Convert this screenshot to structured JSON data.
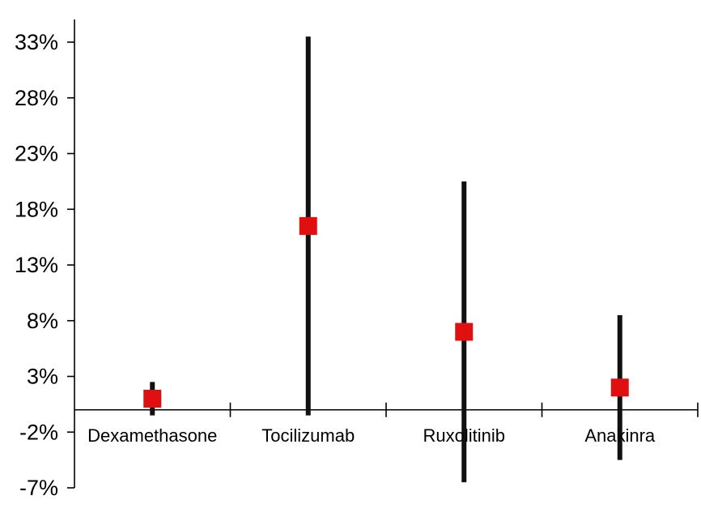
{
  "chart_data": {
    "type": "scatter",
    "subtype": "point-with-range",
    "title": "",
    "xlabel": "",
    "ylabel": "",
    "categories": [
      "Dexamethasone",
      "Tocilizumab",
      "Ruxolitinib",
      "Anakinra"
    ],
    "series": [
      {
        "points": [
          1.0,
          16.5,
          7.0,
          2.0
        ],
        "lower": [
          -0.5,
          -0.5,
          -6.5,
          -4.5
        ],
        "upper": [
          2.5,
          33.5,
          20.5,
          8.5
        ]
      }
    ],
    "yticks": [
      "33%",
      "28%",
      "23%",
      "18%",
      "13%",
      "8%",
      "3%",
      "-2%",
      "-7%"
    ],
    "ytick_values": [
      33,
      28,
      23,
      18,
      13,
      8,
      3,
      -2,
      -7
    ],
    "ylim": [
      -7,
      33
    ],
    "x_axis_crosses_at": 0,
    "grid": false,
    "legend": "none",
    "colors": {
      "marker": "#e01010",
      "range_line": "#111111",
      "axis": "#000000"
    }
  }
}
